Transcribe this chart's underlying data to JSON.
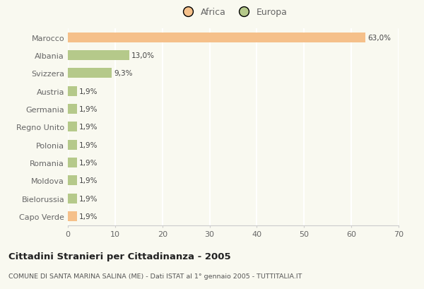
{
  "categories": [
    "Marocco",
    "Albania",
    "Svizzera",
    "Austria",
    "Germania",
    "Regno Unito",
    "Polonia",
    "Romania",
    "Moldova",
    "Bielorussia",
    "Capo Verde"
  ],
  "values": [
    63.0,
    13.0,
    9.3,
    1.9,
    1.9,
    1.9,
    1.9,
    1.9,
    1.9,
    1.9,
    1.9
  ],
  "colors": [
    "#F5C08A",
    "#B5C98A",
    "#B5C98A",
    "#B5C98A",
    "#B5C98A",
    "#B5C98A",
    "#B5C98A",
    "#B5C98A",
    "#B5C98A",
    "#B5C98A",
    "#F5C08A"
  ],
  "labels": [
    "63,0%",
    "13,0%",
    "9,3%",
    "1,9%",
    "1,9%",
    "1,9%",
    "1,9%",
    "1,9%",
    "1,9%",
    "1,9%",
    "1,9%"
  ],
  "legend_africa_color": "#F5C08A",
  "legend_europa_color": "#B5C98A",
  "legend_africa_label": "Africa",
  "legend_europa_label": "Europa",
  "title": "Cittadini Stranieri per Cittadinanza - 2005",
  "subtitle": "COMUNE DI SANTA MARINA SALINA (ME) - Dati ISTAT al 1° gennaio 2005 - TUTTITALIA.IT",
  "xlim": [
    0,
    70
  ],
  "xticks": [
    0,
    10,
    20,
    30,
    40,
    50,
    60,
    70
  ],
  "background_color": "#F9F9F0",
  "grid_color": "#FFFFFF",
  "bar_height": 0.55
}
